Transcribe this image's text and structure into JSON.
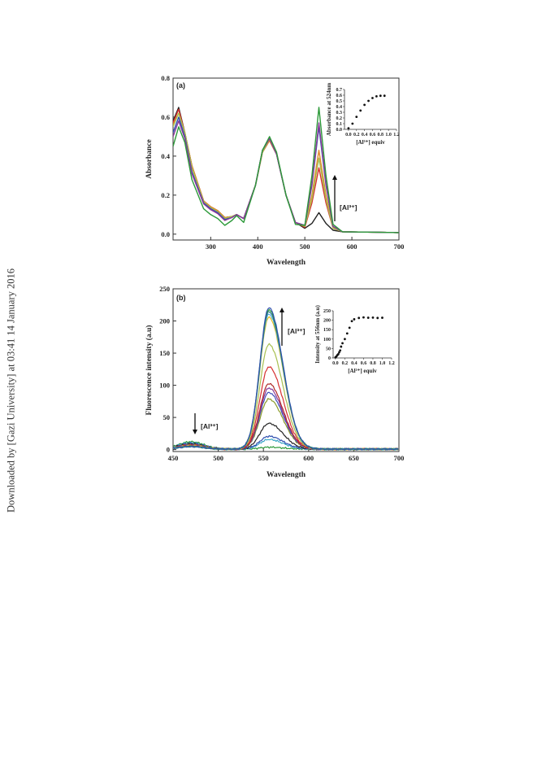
{
  "watermark": "Downloaded by [Gazi University] at 03:41 14 January 2016",
  "chart_data": [
    {
      "type": "line",
      "panel_label": "(a)",
      "xlabel": "Wavelength",
      "ylabel": "Absorbance",
      "xlim": [
        220,
        700
      ],
      "ylim": [
        -0.03,
        0.8
      ],
      "xticks": [
        300,
        400,
        500,
        600,
        700
      ],
      "yticks": [
        0.0,
        0.2,
        0.4,
        0.6,
        0.8
      ],
      "annotation": "[Al³⁺]",
      "annotation_direction": "up",
      "colors": [
        "#222222",
        "#d63030",
        "#e28a2a",
        "#a8c050",
        "#3050b0",
        "#8a3a9a",
        "#2d9a3a"
      ],
      "series": [
        {
          "color": "#222222",
          "x": [
            220,
            232,
            245,
            260,
            285,
            300,
            315,
            330,
            345,
            355,
            370,
            395,
            410,
            425,
            440,
            460,
            480,
            500,
            515,
            530,
            545,
            560,
            580,
            650,
            700
          ],
          "y": [
            0.58,
            0.65,
            0.52,
            0.35,
            0.17,
            0.14,
            0.12,
            0.085,
            0.09,
            0.1,
            0.08,
            0.25,
            0.42,
            0.48,
            0.41,
            0.2,
            0.06,
            0.03,
            0.055,
            0.11,
            0.055,
            0.02,
            0.012,
            0.01,
            0.008
          ]
        },
        {
          "color": "#d63030",
          "x": [
            220,
            232,
            245,
            260,
            285,
            300,
            315,
            330,
            345,
            355,
            370,
            395,
            410,
            425,
            440,
            460,
            480,
            500,
            515,
            530,
            545,
            560,
            580,
            650,
            700
          ],
          "y": [
            0.57,
            0.64,
            0.52,
            0.35,
            0.17,
            0.14,
            0.12,
            0.085,
            0.09,
            0.1,
            0.08,
            0.25,
            0.42,
            0.48,
            0.41,
            0.2,
            0.06,
            0.035,
            0.16,
            0.34,
            0.16,
            0.03,
            0.012,
            0.01,
            0.008
          ]
        },
        {
          "color": "#e28a2a",
          "x": [
            220,
            232,
            245,
            260,
            285,
            300,
            315,
            330,
            345,
            355,
            370,
            395,
            410,
            425,
            440,
            460,
            480,
            500,
            515,
            530,
            545,
            560,
            580,
            650,
            700
          ],
          "y": [
            0.56,
            0.62,
            0.52,
            0.35,
            0.17,
            0.14,
            0.12,
            0.085,
            0.09,
            0.1,
            0.08,
            0.25,
            0.42,
            0.48,
            0.41,
            0.2,
            0.06,
            0.04,
            0.2,
            0.43,
            0.2,
            0.035,
            0.012,
            0.01,
            0.008
          ]
        },
        {
          "color": "#a8c050",
          "x": [
            220,
            232,
            245,
            260,
            285,
            300,
            315,
            330,
            345,
            355,
            370,
            395,
            410,
            425,
            440,
            460,
            480,
            500,
            515,
            530,
            545,
            560,
            580,
            650,
            700
          ],
          "y": [
            0.55,
            0.62,
            0.52,
            0.34,
            0.165,
            0.135,
            0.115,
            0.08,
            0.09,
            0.1,
            0.08,
            0.25,
            0.42,
            0.49,
            0.41,
            0.2,
            0.06,
            0.04,
            0.18,
            0.39,
            0.18,
            0.03,
            0.012,
            0.01,
            0.008
          ]
        },
        {
          "color": "#3050b0",
          "x": [
            220,
            232,
            245,
            260,
            285,
            300,
            315,
            330,
            345,
            355,
            370,
            395,
            410,
            425,
            440,
            460,
            480,
            500,
            515,
            530,
            545,
            560,
            580,
            650,
            700
          ],
          "y": [
            0.52,
            0.6,
            0.5,
            0.32,
            0.16,
            0.13,
            0.11,
            0.075,
            0.085,
            0.1,
            0.08,
            0.25,
            0.43,
            0.49,
            0.41,
            0.2,
            0.06,
            0.045,
            0.25,
            0.55,
            0.25,
            0.04,
            0.012,
            0.01,
            0.008
          ]
        },
        {
          "color": "#8a3a9a",
          "x": [
            220,
            232,
            245,
            260,
            285,
            300,
            315,
            330,
            345,
            355,
            370,
            395,
            410,
            425,
            440,
            460,
            480,
            500,
            515,
            530,
            545,
            560,
            580,
            650,
            700
          ],
          "y": [
            0.5,
            0.58,
            0.49,
            0.31,
            0.155,
            0.125,
            0.105,
            0.07,
            0.085,
            0.1,
            0.08,
            0.25,
            0.43,
            0.49,
            0.41,
            0.2,
            0.06,
            0.045,
            0.26,
            0.57,
            0.26,
            0.04,
            0.012,
            0.01,
            0.008
          ]
        },
        {
          "color": "#2d9a3a",
          "x": [
            220,
            232,
            245,
            260,
            285,
            300,
            315,
            330,
            345,
            355,
            370,
            395,
            410,
            425,
            440,
            460,
            480,
            500,
            515,
            530,
            545,
            560,
            580,
            650,
            700
          ],
          "y": [
            0.45,
            0.55,
            0.47,
            0.28,
            0.13,
            0.1,
            0.08,
            0.045,
            0.07,
            0.095,
            0.06,
            0.25,
            0.43,
            0.5,
            0.42,
            0.2,
            0.05,
            0.045,
            0.3,
            0.65,
            0.3,
            0.05,
            0.012,
            0.01,
            0.008
          ]
        }
      ],
      "inset": {
        "type": "scatter",
        "xlabel": "[Al3+] equiv",
        "ylabel": "Absorbance at 524nm",
        "xlim": [
          -0.1,
          1.2
        ],
        "ylim": [
          0.0,
          0.7
        ],
        "xticks": [
          0.0,
          0.2,
          0.4,
          0.6,
          0.8,
          1.0,
          1.2
        ],
        "yticks": [
          0.0,
          0.1,
          0.2,
          0.3,
          0.4,
          0.5,
          0.6,
          0.7
        ],
        "x": [
          0.0,
          0.1,
          0.2,
          0.3,
          0.4,
          0.5,
          0.6,
          0.7,
          0.8,
          0.9
        ],
        "y": [
          0.02,
          0.1,
          0.22,
          0.33,
          0.43,
          0.5,
          0.55,
          0.58,
          0.59,
          0.59
        ]
      }
    },
    {
      "type": "line",
      "panel_label": "(b)",
      "xlabel": "Wavelength",
      "ylabel": "Fluorescence intensity (a.u)",
      "xlim": [
        450,
        700
      ],
      "ylim": [
        -3,
        250
      ],
      "xticks": [
        450,
        500,
        550,
        600,
        650,
        700
      ],
      "yticks": [
        0,
        50,
        100,
        150,
        200,
        250
      ],
      "annotations": [
        {
          "text": "[Al³⁺]",
          "direction": "up"
        },
        {
          "text": "[Al³⁺]",
          "direction": "down"
        }
      ],
      "series": [
        {
          "color": "#2d9a3a",
          "peak": 3,
          "base470": 14
        },
        {
          "color": "#3aa6c8",
          "peak": 15,
          "base470": 12
        },
        {
          "color": "#3050b0",
          "peak": 20,
          "base470": 11
        },
        {
          "color": "#222222",
          "peak": 40,
          "base470": 10
        },
        {
          "color": "#8a9a2a",
          "peak": 78,
          "base470": 9
        },
        {
          "color": "#4050b8",
          "peak": 88,
          "base470": 8
        },
        {
          "color": "#8a3a9a",
          "peak": 95,
          "base470": 8
        },
        {
          "color": "#b02a2a",
          "peak": 102,
          "base470": 7
        },
        {
          "color": "#d63030",
          "peak": 128,
          "base470": 7
        },
        {
          "color": "#a8c050",
          "peak": 163,
          "base470": 6
        },
        {
          "color": "#e8c020",
          "peak": 205,
          "base470": 6
        },
        {
          "color": "#50a8d8",
          "peak": 210,
          "base470": 5
        },
        {
          "color": "#2a7a8a",
          "peak": 214,
          "base470": 5
        },
        {
          "color": "#2d9a3a",
          "peak": 217,
          "base470": 5
        },
        {
          "color": "#3050b0",
          "peak": 220,
          "base470": 5
        }
      ],
      "inset": {
        "type": "scatter",
        "xlabel": "[Al3+] equiv",
        "ylabel": "Intensity at 556nm (a.u)",
        "xlim": [
          -0.05,
          1.2
        ],
        "ylim": [
          0,
          250
        ],
        "xticks": [
          0.0,
          0.2,
          0.4,
          0.6,
          0.8,
          1.0,
          1.2
        ],
        "yticks": [
          0,
          50,
          100,
          150,
          200,
          250
        ],
        "x": [
          0.0,
          0.02,
          0.04,
          0.06,
          0.08,
          0.1,
          0.12,
          0.15,
          0.2,
          0.25,
          0.3,
          0.35,
          0.4,
          0.5,
          0.6,
          0.7,
          0.8,
          0.9,
          1.0
        ],
        "y": [
          3,
          8,
          15,
          20,
          30,
          40,
          60,
          78,
          100,
          130,
          160,
          195,
          205,
          212,
          215,
          213,
          214,
          212,
          213
        ]
      }
    }
  ]
}
